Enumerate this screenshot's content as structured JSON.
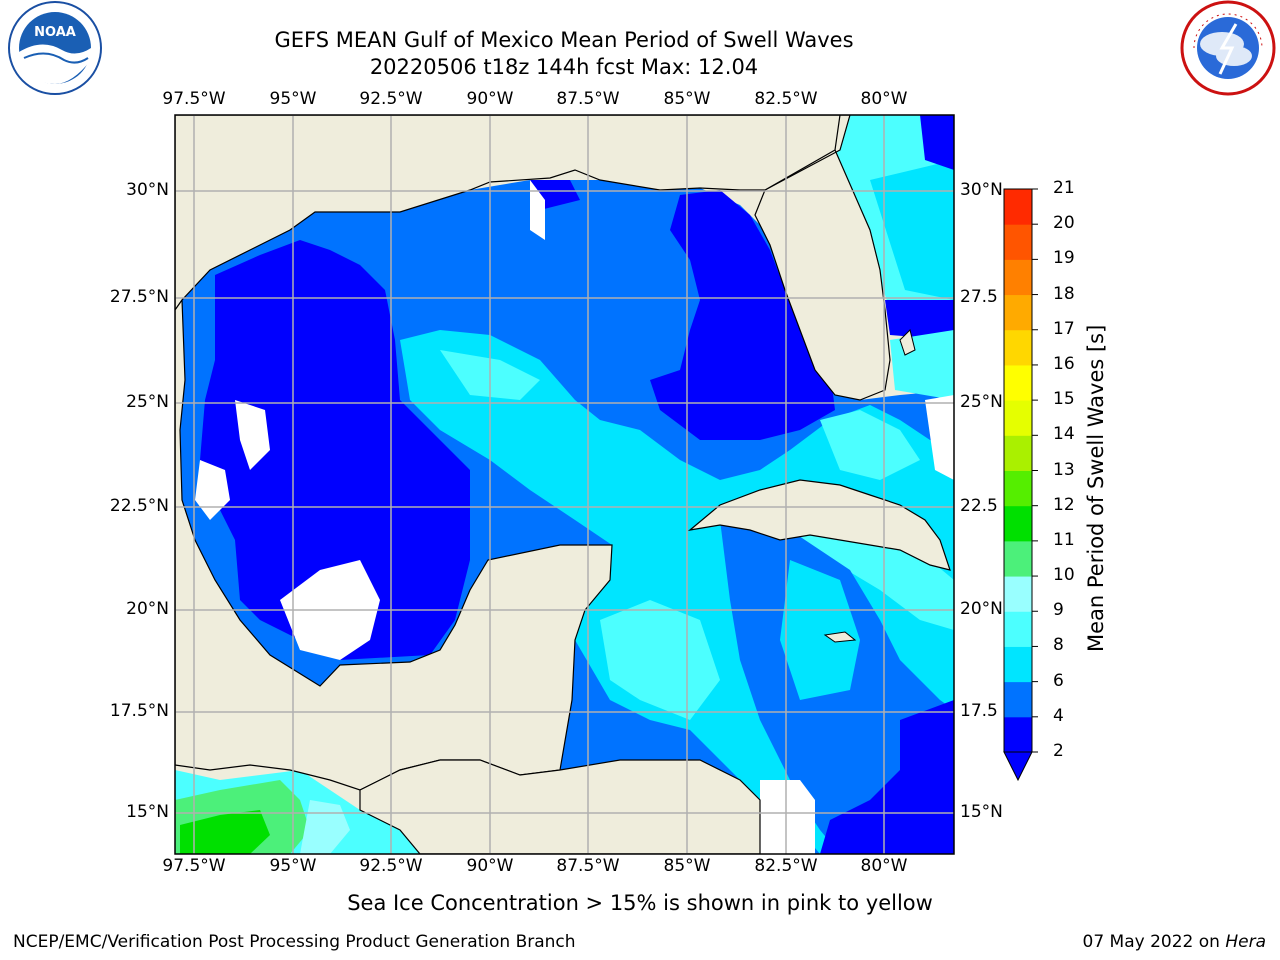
{
  "header": {
    "title": "GEFS MEAN Gulf of Mexico Mean Period of Swell Waves",
    "subtitle": "20220506 t18z 144h fcst   Max: 12.04"
  },
  "logos": {
    "left": "NOAA",
    "right": "NATIONAL WEATHER SERVICE"
  },
  "map": {
    "lon_labels": [
      "97.5°W",
      "95°W",
      "92.5°W",
      "90°W",
      "87.5°W",
      "85°W",
      "82.5°W",
      "80°W"
    ],
    "lat_labels_left": [
      "30°N",
      "27.5°N",
      "25°N",
      "22.5°N",
      "20°N",
      "17.5°N",
      "15°N"
    ],
    "lat_labels_right": [
      "30°N",
      "27.5",
      "25°N",
      "22.5",
      "20°N",
      "17.5",
      "15°N"
    ],
    "colors": {
      "land": "#efeddc",
      "coast": "#000000",
      "grid": "#b0b0b0",
      "no_data": "#ffffff"
    }
  },
  "colorbar": {
    "label": "Mean Period of Swell Waves [s]",
    "ticks": [
      "2",
      "4",
      "6",
      "8",
      "9",
      "10",
      "11",
      "12",
      "13",
      "14",
      "15",
      "16",
      "17",
      "18",
      "19",
      "20",
      "21"
    ],
    "colors": [
      "#0000ff",
      "#0073ff",
      "#00e5ff",
      "#4cffff",
      "#99ffff",
      "#4cf07a",
      "#00e000",
      "#55ee00",
      "#aaf000",
      "#e5ff00",
      "#ffff00",
      "#ffd700",
      "#ffaa00",
      "#ff8000",
      "#ff5500",
      "#ff2a00"
    ],
    "extend_color": "#0000ff"
  },
  "note": "Sea Ice Concentration > 15% is shown in pink to yellow",
  "footer": {
    "left": "NCEP/EMC/Verification Post Processing Product Generation Branch",
    "right_prefix": "07 May 2022 on ",
    "right_machine": "Hera"
  }
}
